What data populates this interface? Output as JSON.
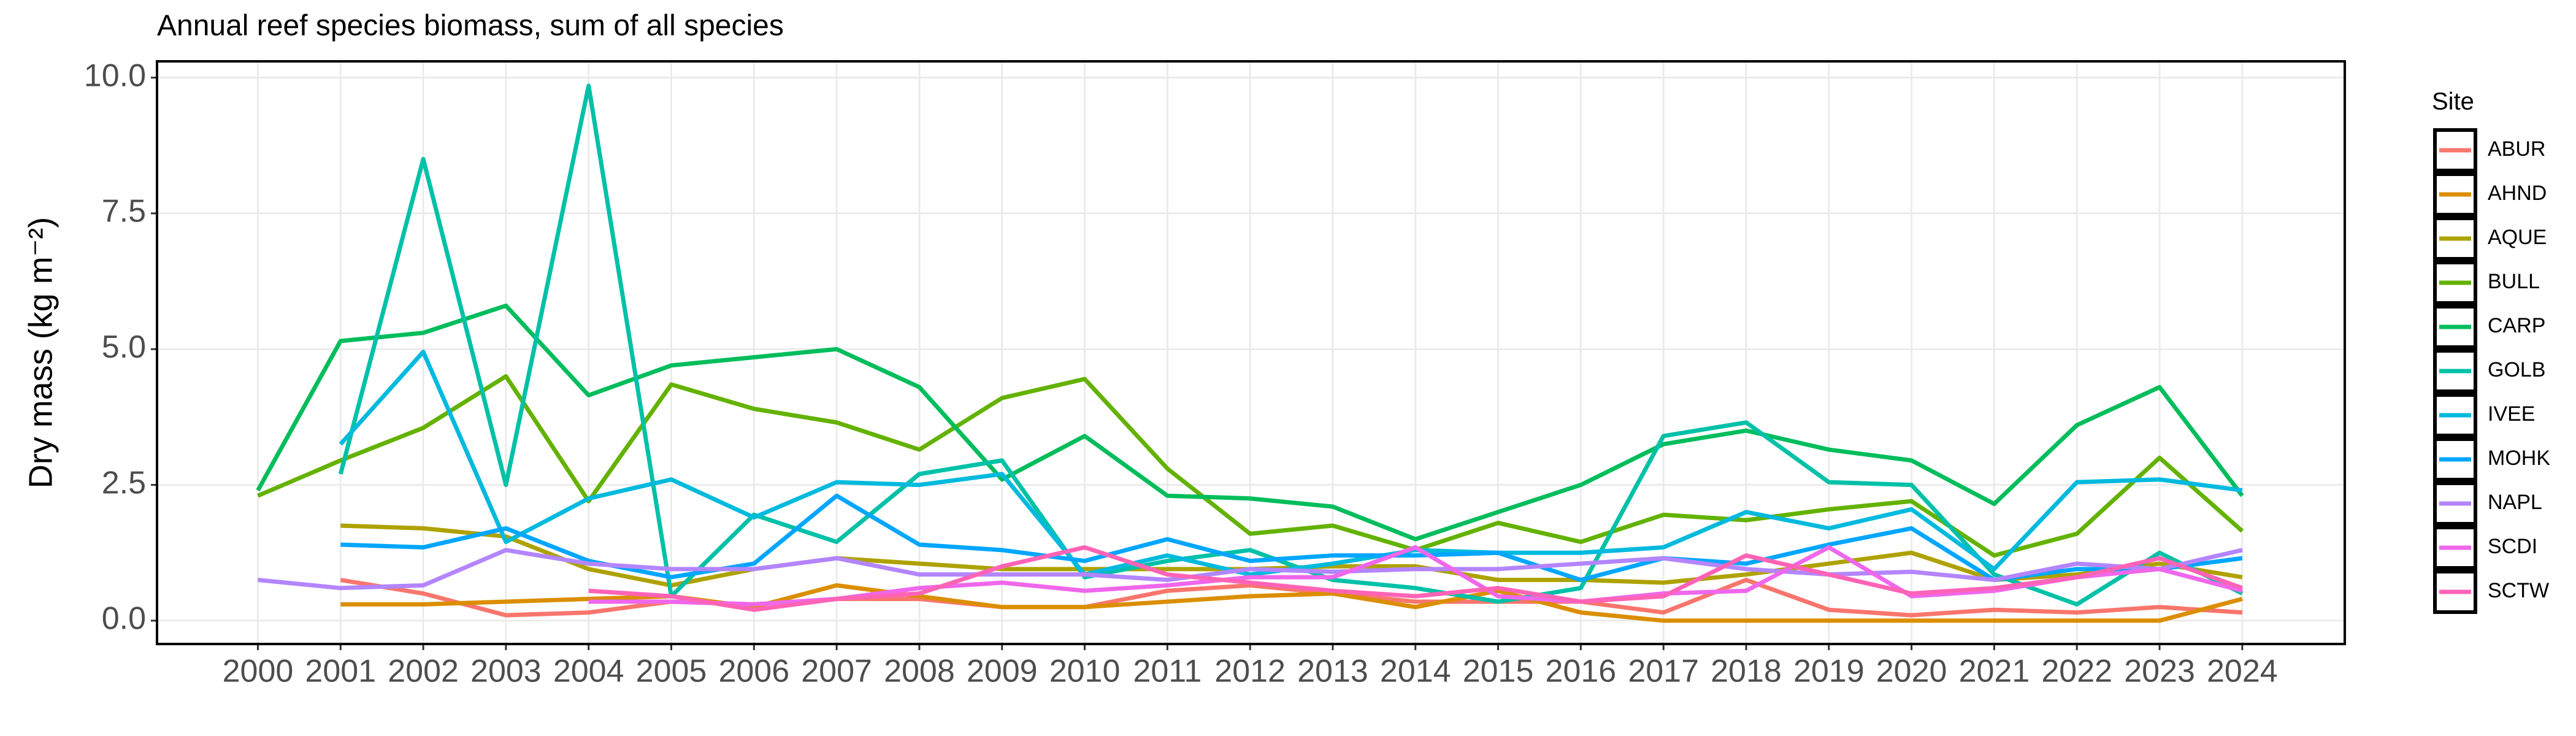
{
  "chart_data": {
    "type": "line",
    "title": "Annual reef species biomass, sum of all species",
    "y_label": "Dry mass (kg m⁻²)",
    "legend_title": "Site",
    "legend_position": "right",
    "grid": true,
    "x": [
      2000,
      2001,
      2002,
      2003,
      2004,
      2005,
      2006,
      2007,
      2008,
      2009,
      2010,
      2011,
      2012,
      2013,
      2014,
      2015,
      2016,
      2017,
      2018,
      2019,
      2020,
      2021,
      2022,
      2023,
      2024
    ],
    "xlim": [
      1998.78,
      2025.24
    ],
    "xticks": [
      2000,
      2001,
      2002,
      2003,
      2004,
      2005,
      2006,
      2007,
      2008,
      2009,
      2010,
      2011,
      2012,
      2013,
      2014,
      2015,
      2016,
      2017,
      2018,
      2019,
      2020,
      2021,
      2022,
      2023,
      2024
    ],
    "ylim": [
      -0.43,
      10.3
    ],
    "yticks": [
      {
        "value": 0,
        "label": "0.0"
      },
      {
        "value": 2.5,
        "label": "2.5"
      },
      {
        "value": 5,
        "label": "5.0"
      },
      {
        "value": 7.5,
        "label": "7.5"
      },
      {
        "value": 10,
        "label": "10.0"
      }
    ],
    "series": [
      {
        "name": "ABUR",
        "color": "#F8766D",
        "values": [
          null,
          0.75,
          0.5,
          0.1,
          0.15,
          0.35,
          0.3,
          0.4,
          0.4,
          0.25,
          0.25,
          0.55,
          0.65,
          0.5,
          0.35,
          0.35,
          0.35,
          0.15,
          0.75,
          0.2,
          0.1,
          0.2,
          0.15,
          0.25,
          0.15
        ]
      },
      {
        "name": "AHND",
        "color": "#DB8E00",
        "values": [
          null,
          0.3,
          0.3,
          0.35,
          0.4,
          0.45,
          0.25,
          0.65,
          0.45,
          0.25,
          0.25,
          0.35,
          0.45,
          0.5,
          0.25,
          0.55,
          0.15,
          0,
          0,
          0,
          0,
          0,
          0,
          0,
          0.4
        ]
      },
      {
        "name": "AQUE",
        "color": "#AEA200",
        "values": [
          null,
          1.75,
          1.7,
          1.55,
          0.95,
          0.65,
          0.95,
          1.15,
          1.05,
          0.95,
          0.95,
          0.95,
          0.95,
          1.0,
          1.0,
          0.75,
          0.75,
          0.7,
          0.85,
          1.05,
          1.25,
          0.75,
          0.85,
          1.05,
          0.8
        ]
      },
      {
        "name": "BULL",
        "color": "#64B200",
        "values": [
          2.3,
          2.95,
          3.55,
          4.5,
          2.2,
          4.35,
          3.9,
          3.65,
          3.15,
          4.1,
          4.45,
          2.8,
          1.6,
          1.75,
          1.3,
          1.8,
          1.45,
          1.95,
          1.85,
          2.05,
          2.2,
          1.2,
          1.6,
          3.0,
          1.65
        ]
      },
      {
        "name": "CARP",
        "color": "#00BD5C",
        "values": [
          2.4,
          5.15,
          5.3,
          5.8,
          4.15,
          4.7,
          4.85,
          5.0,
          4.3,
          2.6,
          3.4,
          2.3,
          2.25,
          2.1,
          1.5,
          2.0,
          2.5,
          3.25,
          3.5,
          3.15,
          2.95,
          2.15,
          3.6,
          4.3,
          2.3
        ]
      },
      {
        "name": "GOLB",
        "color": "#00C1A7",
        "values": [
          null,
          2.7,
          8.5,
          2.5,
          9.85,
          0.45,
          1.95,
          1.45,
          2.7,
          2.95,
          0.8,
          1.1,
          1.3,
          0.75,
          0.6,
          0.35,
          0.6,
          3.4,
          3.65,
          2.55,
          2.5,
          0.85,
          0.3,
          1.25,
          0.5
        ]
      },
      {
        "name": "IVEE",
        "color": "#00BADE",
        "values": [
          null,
          3.25,
          4.95,
          1.45,
          2.25,
          2.6,
          1.9,
          2.55,
          2.5,
          2.7,
          0.85,
          1.2,
          0.85,
          1.05,
          1.3,
          1.25,
          1.25,
          1.35,
          2.0,
          1.7,
          2.05,
          0.95,
          2.55,
          2.6,
          2.4
        ]
      },
      {
        "name": "MOHK",
        "color": "#00A6FF",
        "values": [
          null,
          1.4,
          1.35,
          1.7,
          1.1,
          0.8,
          1.05,
          2.3,
          1.4,
          1.3,
          1.1,
          1.5,
          1.1,
          1.2,
          1.2,
          1.25,
          0.75,
          1.15,
          1.05,
          1.4,
          1.7,
          0.75,
          0.95,
          0.95,
          1.15
        ]
      },
      {
        "name": "NAPL",
        "color": "#B385FF",
        "values": [
          0.75,
          0.6,
          0.65,
          1.3,
          1.05,
          0.95,
          0.95,
          1.15,
          0.85,
          0.85,
          0.85,
          0.75,
          0.95,
          0.9,
          0.95,
          0.95,
          1.05,
          1.15,
          0.95,
          0.85,
          0.9,
          0.75,
          1.05,
          0.95,
          1.3
        ]
      },
      {
        "name": "SCDI",
        "color": "#EF67EB",
        "values": [
          null,
          null,
          null,
          null,
          0.35,
          0.35,
          0.3,
          0.4,
          0.6,
          0.7,
          0.55,
          0.65,
          0.8,
          0.8,
          1.35,
          0.45,
          0.35,
          0.5,
          0.55,
          1.35,
          0.45,
          0.55,
          0.8,
          0.95,
          0.55
        ]
      },
      {
        "name": "SCTW",
        "color": "#FF63B6",
        "values": [
          null,
          null,
          null,
          null,
          0.55,
          0.45,
          0.2,
          0.4,
          0.5,
          1.0,
          1.35,
          0.85,
          0.7,
          0.55,
          0.45,
          0.6,
          0.35,
          0.45,
          1.2,
          0.85,
          0.5,
          0.6,
          0.8,
          1.15,
          0.6
        ]
      }
    ]
  }
}
